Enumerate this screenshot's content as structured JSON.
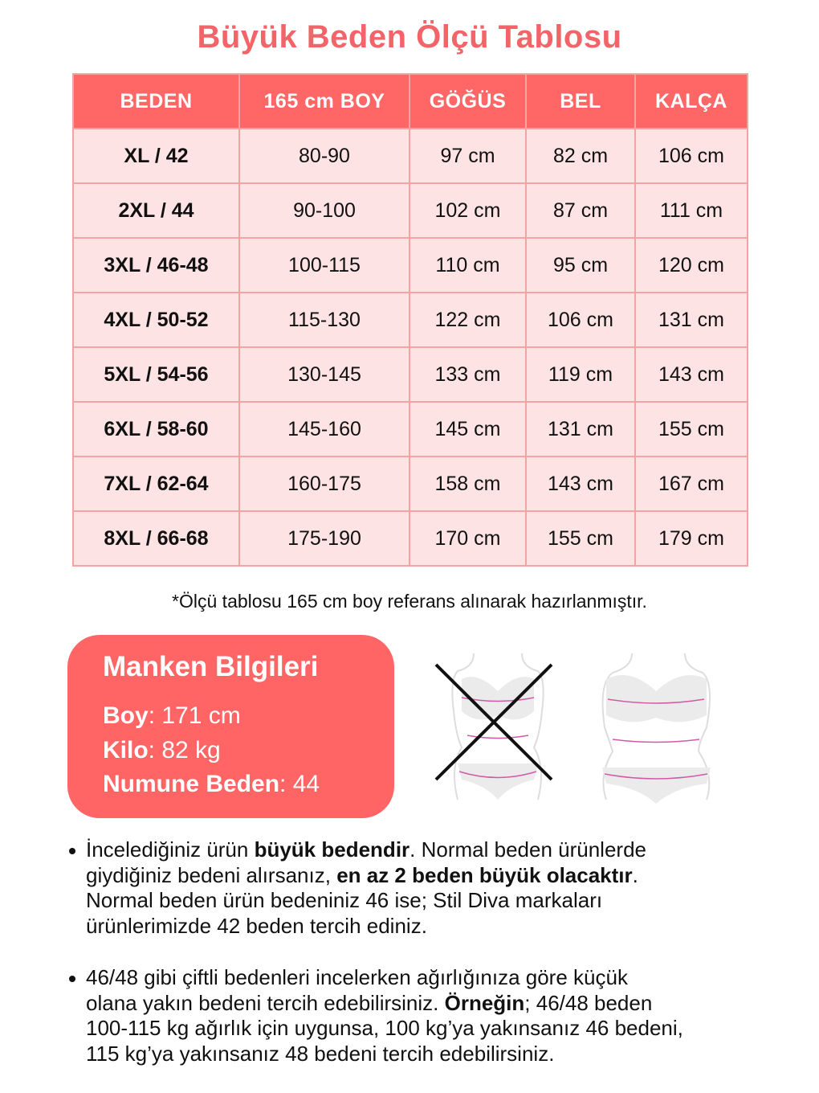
{
  "title": "Büyük Beden Ölçü Tablosu",
  "table": {
    "headers": [
      "BEDEN",
      "165 cm BOY",
      "GÖĞÜS",
      "BEL",
      "KALÇA"
    ],
    "rows": [
      [
        "XL / 42",
        "80-90",
        "97 cm",
        "82 cm",
        "106 cm"
      ],
      [
        "2XL / 44",
        "90-100",
        "102 cm",
        "87 cm",
        "111 cm"
      ],
      [
        "3XL / 46-48",
        "100-115",
        "110 cm",
        "95 cm",
        "120 cm"
      ],
      [
        "4XL / 50-52",
        "115-130",
        "122 cm",
        "106 cm",
        "131 cm"
      ],
      [
        "5XL / 54-56",
        "130-145",
        "133 cm",
        "119 cm",
        "143 cm"
      ],
      [
        "6XL / 58-60",
        "145-160",
        "145 cm",
        "131 cm",
        "155 cm"
      ],
      [
        "7XL / 62-64",
        "160-175",
        "158 cm",
        "143 cm",
        "167 cm"
      ],
      [
        "8XL / 66-68",
        "175-190",
        "170 cm",
        "155 cm",
        "179 cm"
      ]
    ]
  },
  "note": "*Ölçü tablosu 165 cm boy referans alınarak hazırlanmıştır.",
  "model": {
    "title": "Manken Bilgileri",
    "height_label": "Boy",
    "height_value": ": 171 cm",
    "weight_label": "Kilo",
    "weight_value": ": 82 kg",
    "size_label": "Numune Beden",
    "size_value": ": 44"
  },
  "figures": {
    "wrong": "body-outline-crossed-icon",
    "right": "body-outline-measure-icon"
  },
  "bullets": [
    [
      [
        {
          "t": "İncelediğiniz ürün "
        },
        {
          "t": "büyük bedendir",
          "b": true
        },
        {
          "t": ". Normal beden ürünlerde"
        }
      ],
      [
        {
          "t": "giydiğiniz bedeni alırsanız, "
        },
        {
          "t": "en az 2 beden büyük olacaktır",
          "b": true
        },
        {
          "t": "."
        }
      ],
      [
        {
          "t": "Normal beden ürün bedeniniz 46 ise; Stil Diva markaları"
        }
      ],
      [
        {
          "t": "ürünlerimizde 42 beden tercih ediniz."
        }
      ]
    ],
    [
      [
        {
          "t": "46/48 gibi çiftli bedenleri incelerken ağırlığınıza göre küçük"
        }
      ],
      [
        {
          "t": "olana yakın bedeni tercih edebilirsiniz. "
        },
        {
          "t": "Örneğin",
          "b": true
        },
        {
          "t": "; 46/48 beden"
        }
      ],
      [
        {
          "t": "100-115 kg ağırlık için uygunsa, 100 kg’ya yakınsanız 46 bedeni,"
        }
      ],
      [
        {
          "t": "115 kg’ya yakınsanız 48 bedeni tercih edebilirsiniz."
        }
      ]
    ]
  ],
  "colors": {
    "accent": "#ff6565",
    "title": "#f26468",
    "row": "#fde3e3",
    "border": "#f4a3a3"
  }
}
